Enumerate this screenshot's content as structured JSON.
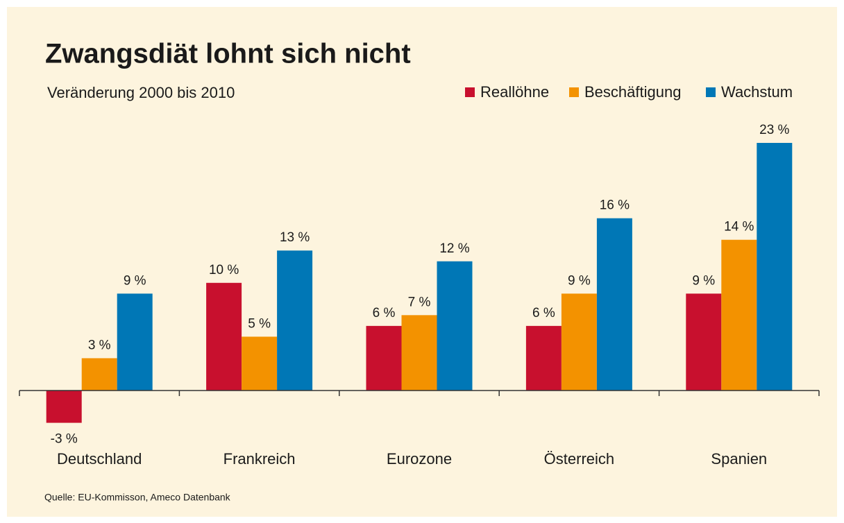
{
  "chart_data": {
    "type": "bar",
    "title": "Zwangsdiät lohnt sich nicht",
    "subtitle": "Veränderung 2000 bis 2010",
    "source": "Quelle: EU-Kommisson, Ameco Datenbank",
    "categories": [
      "Deutschland",
      "Frankreich",
      "Eurozone",
      "Österreich",
      "Spanien"
    ],
    "series": [
      {
        "name": "Reallöhne",
        "color": "#c8102e",
        "values": [
          -3,
          10,
          6,
          6,
          9
        ],
        "value_labels": [
          "-3 %",
          "10 %",
          "6 %",
          "6 %",
          "9 %"
        ]
      },
      {
        "name": "Beschäftigung",
        "color": "#f39200",
        "values": [
          3,
          5,
          7,
          9,
          14
        ],
        "value_labels": [
          "3 %",
          "5 %",
          "7 %",
          "9 %",
          "14 %"
        ]
      },
      {
        "name": "Wachstum",
        "color": "#0077b6",
        "values": [
          9,
          13,
          12,
          16,
          23
        ],
        "value_labels": [
          "9 %",
          "13 %",
          "12 %",
          "16 %",
          "23 %"
        ]
      }
    ]
  }
}
